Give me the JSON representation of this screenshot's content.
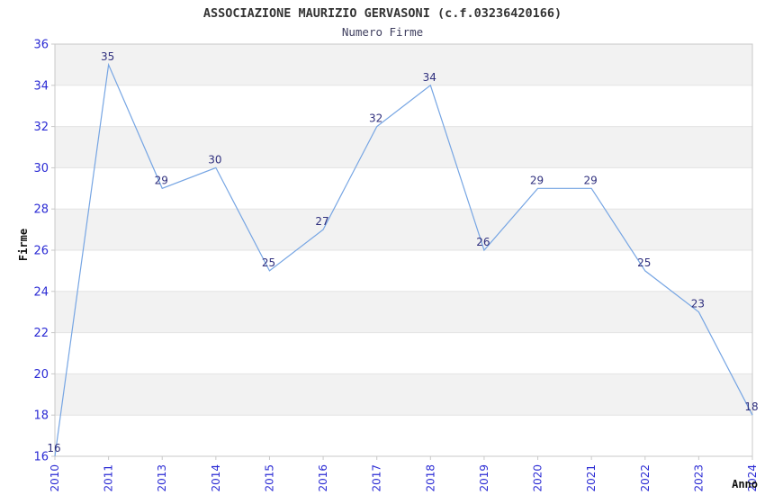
{
  "chart_data": {
    "type": "line",
    "title": "ASSOCIAZIONE MAURIZIO GERVASONI (c.f.03236420166)",
    "subtitle": "Numero Firme",
    "xlabel": "Anno",
    "ylabel": "Firme",
    "categories": [
      "2010",
      "2011",
      "2013",
      "2014",
      "2015",
      "2016",
      "2017",
      "2018",
      "2019",
      "2020",
      "2021",
      "2022",
      "2023",
      "2024"
    ],
    "values": [
      16,
      35,
      29,
      30,
      25,
      27,
      32,
      34,
      26,
      29,
      29,
      25,
      23,
      18
    ],
    "ylim": [
      16,
      36
    ],
    "ytick_step": 2,
    "yticks": [
      "16",
      "18",
      "20",
      "22",
      "24",
      "26",
      "28",
      "30",
      "32",
      "34",
      "36"
    ],
    "grid": "horizontal-bands",
    "legend": "none",
    "colors": {
      "line": "#76a5e3",
      "axis_tick_label": "#2b2bd4",
      "point_label": "#30307e",
      "band_fill": "#f2f2f2",
      "gridline": "#e3e3e3",
      "plot_border": "#c8c8c8",
      "title": "#333333",
      "subtitle": "#3f3f5f",
      "axis_title": "#111111"
    }
  }
}
